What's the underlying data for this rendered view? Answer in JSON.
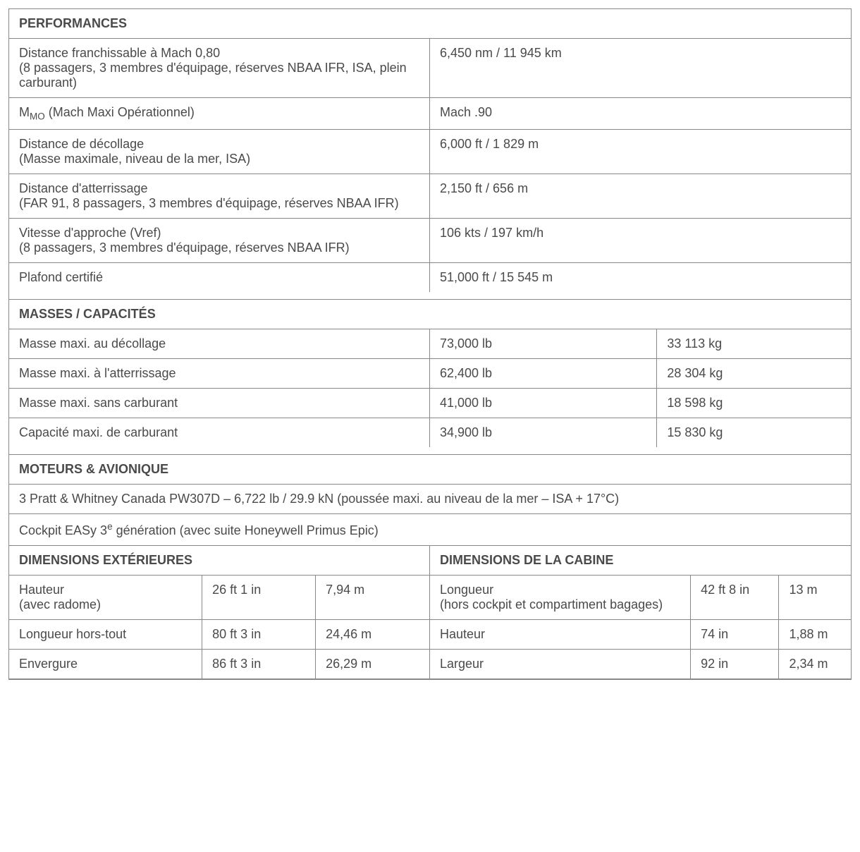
{
  "perf": {
    "header": "PERFORMANCES",
    "rows": [
      {
        "label": "Distance franchissable à Mach 0,80\n(8 passagers, 3 membres d'équipage, réserves NBAA IFR, ISA, plein carburant)",
        "value": "6,450 nm / 11 945 km"
      },
      {
        "label_html": "M<sub>MO</sub> (Mach Maxi Opérationnel)",
        "value": "Mach .90"
      },
      {
        "label": "Distance de décollage\n(Masse maximale, niveau de la mer, ISA)",
        "value": "6,000 ft / 1 829 m"
      },
      {
        "label": "Distance d'atterrissage\n(FAR 91, 8 passagers, 3 membres d'équipage, réserves NBAA IFR)",
        "value": "2,150 ft / 656 m"
      },
      {
        "label": "Vitesse d'approche (Vref)\n(8 passagers, 3 membres d'équipage, réserves NBAA IFR)",
        "value": "106 kts / 197 km/h"
      },
      {
        "label": "Plafond certifié",
        "value": "51,000 ft / 15 545 m"
      }
    ]
  },
  "cap": {
    "header": "MASSES / CAPACITÉS",
    "rows": [
      {
        "label": "Masse maxi. au décollage",
        "lb": "73,000 lb",
        "kg": "33 113 kg"
      },
      {
        "label": "Masse maxi. à l'atterrissage",
        "lb": "62,400 lb",
        "kg": "28 304 kg"
      },
      {
        "label": "Masse maxi. sans carburant",
        "lb": "41,000 lb",
        "kg": "18 598 kg"
      },
      {
        "label": "Capacité maxi. de carburant",
        "lb": "34,900 lb",
        "kg": "15 830 kg"
      }
    ]
  },
  "mot": {
    "header": "MOTEURS & AVIONIQUE",
    "lines": [
      {
        "text": "3 Pratt & Whitney Canada PW307D – 6,722 lb / 29.9 kN (poussée maxi. au niveau de la mer – ISA + 17°C)"
      },
      {
        "text_html": "Cockpit EASy 3<sup>e</sup> génération (avec suite Honeywell Primus Epic)"
      }
    ]
  },
  "dim": {
    "ext": {
      "header": "DIMENSIONS EXTÉRIEURES",
      "rows": [
        {
          "label": "Hauteur\n(avec radome)",
          "v1": "26 ft 1 in",
          "v2": "7,94 m"
        },
        {
          "label": "Longueur hors-tout",
          "v1": "80 ft 3 in",
          "v2": "24,46 m"
        },
        {
          "label": "Envergure",
          "v1": "86 ft 3 in",
          "v2": "26,29 m"
        }
      ]
    },
    "cab": {
      "header": "DIMENSIONS DE LA CABINE",
      "rows": [
        {
          "label": "Longueur\n(hors cockpit et compartiment bagages)",
          "v1": "42 ft 8 in",
          "v2": "13 m"
        },
        {
          "label": "Hauteur",
          "v1": "74 in",
          "v2": "1,88 m"
        },
        {
          "label": "Largeur",
          "v1": "92 in",
          "v2": "2,34 m"
        }
      ]
    }
  }
}
